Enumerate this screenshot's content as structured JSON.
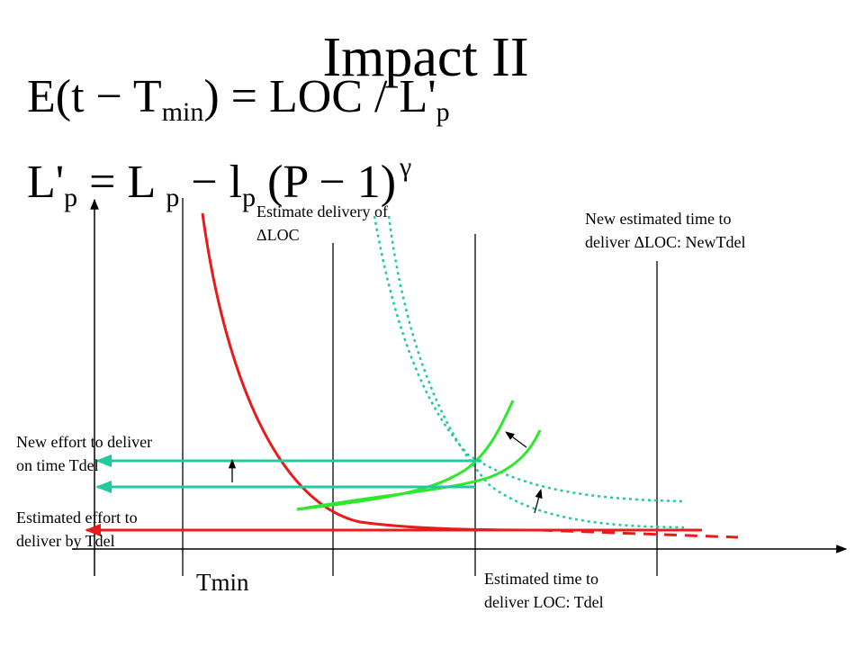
{
  "title": "Impact II",
  "equation1": {
    "lhs_prefix": "E(t − T",
    "lhs_sub": "min",
    "lhs_suffix": ") = LOC / L'",
    "rhs_sub": "p"
  },
  "equation2": {
    "part1": "L'",
    "sub1": "p",
    "part2": " = L ",
    "sub2": "p",
    "part3": " − l",
    "sub3": "p",
    "part4": " (P − 1)",
    "sup": "γ"
  },
  "labels": {
    "estimate_delivery": [
      "Estimate delivery of",
      "ΔLOC"
    ],
    "new_estimated_time": [
      "New estimated time to",
      "deliver ΔLOC: NewTdel"
    ],
    "new_effort": [
      "New effort to deliver",
      "on time Tdel"
    ],
    "estimated_effort": [
      "Estimated effort to",
      "deliver by Tdel"
    ],
    "estimated_time": [
      "Estimated time to",
      "deliver LOC: Tdel"
    ],
    "tmin": "Tmin"
  },
  "colors": {
    "original_curve": "#e81a1a",
    "new_curve": "#2ee82e",
    "dotted_curve": "#20c9a0",
    "effort_arrow_new": "#20c9a0",
    "effort_arrow_old": "#e81a1a",
    "axis": "#000000"
  }
}
